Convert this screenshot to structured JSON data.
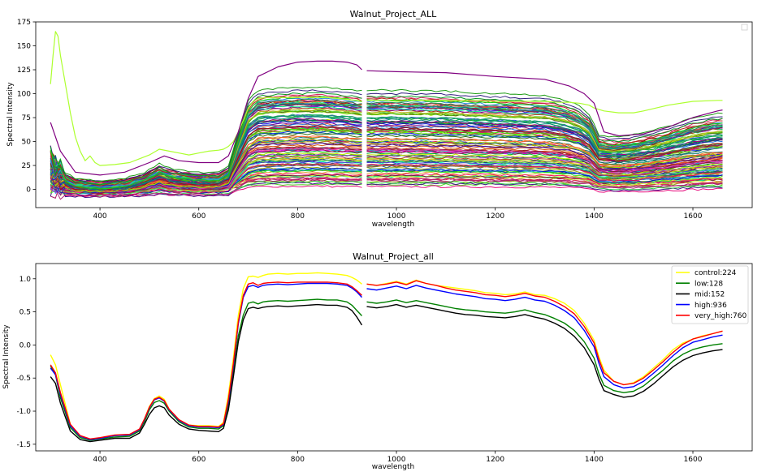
{
  "chart_data": [
    {
      "type": "line",
      "title": "Walnut_Project_ALL",
      "xlabel": "wavelength",
      "ylabel": "Spectral Intensity",
      "xlim": [
        270,
        1720
      ],
      "ylim": [
        -19,
        175
      ],
      "xticks": [
        400,
        600,
        800,
        1000,
        1200,
        1400,
        1600
      ],
      "yticks": [
        0,
        25,
        50,
        75,
        100,
        125,
        150,
        175
      ],
      "grid": false,
      "legend": "top-right (empty)",
      "series_count_estimate": 120,
      "highlighted_series": [
        {
          "color": "#adff2f",
          "x": [
            300,
            305,
            310,
            315,
            320,
            330,
            340,
            350,
            360,
            370,
            380,
            390,
            400,
            430,
            460,
            480,
            500,
            520,
            540,
            560,
            580,
            600,
            620,
            640,
            650,
            660,
            670,
            680,
            690,
            700,
            710,
            720,
            740,
            760,
            780,
            800,
            820,
            840,
            860,
            880,
            900,
            920,
            930,
            940,
            960,
            980,
            1000,
            1050,
            1100,
            1150,
            1200,
            1250,
            1300,
            1330,
            1350,
            1370,
            1390,
            1400,
            1420,
            1450,
            1480,
            1500,
            1550,
            1600,
            1650,
            1660
          ],
          "y": [
            110,
            140,
            165,
            160,
            140,
            110,
            80,
            55,
            40,
            30,
            35,
            28,
            25,
            26,
            28,
            32,
            36,
            42,
            40,
            38,
            36,
            38,
            40,
            41,
            42,
            45,
            50,
            60,
            72,
            85,
            92,
            95,
            96,
            96,
            96,
            96,
            96,
            96,
            96,
            95,
            94,
            93,
            92,
            93,
            93,
            93,
            92,
            93,
            93,
            93,
            92,
            92,
            92,
            91,
            91,
            90,
            88,
            85,
            82,
            80,
            80,
            82,
            88,
            92,
            93,
            93
          ]
        },
        {
          "color": "#800080",
          "x": [
            300,
            320,
            350,
            400,
            450,
            500,
            530,
            560,
            600,
            640,
            660,
            680,
            700,
            720,
            760,
            800,
            840,
            870,
            900,
            920,
            930,
            940,
            1000,
            1100,
            1200,
            1300,
            1350,
            1380,
            1400,
            1420,
            1450,
            1500,
            1550,
            1600,
            1650,
            1660
          ],
          "y": [
            70,
            40,
            18,
            15,
            18,
            28,
            35,
            30,
            28,
            28,
            35,
            60,
            95,
            118,
            128,
            133,
            134,
            134,
            133,
            130,
            125,
            124,
            123,
            122,
            118,
            115,
            108,
            100,
            90,
            60,
            56,
            58,
            65,
            75,
            82,
            83
          ]
        }
      ]
    },
    {
      "type": "line",
      "title": "Walnut_Project_all",
      "xlabel": "wavelength",
      "ylabel": "Spectral Intensity",
      "xlim": [
        270,
        1720
      ],
      "ylim": [
        -1.6,
        1.23
      ],
      "xticks": [
        400,
        600,
        800,
        1000,
        1200,
        1400,
        1600
      ],
      "yticks": [
        -1.5,
        -1.0,
        -0.5,
        0.0,
        0.5,
        1.0
      ],
      "grid": false,
      "legend": "top-right",
      "x": [
        300,
        310,
        320,
        340,
        360,
        380,
        400,
        430,
        460,
        480,
        490,
        500,
        510,
        520,
        530,
        540,
        560,
        580,
        600,
        620,
        640,
        650,
        660,
        670,
        680,
        690,
        700,
        710,
        720,
        730,
        740,
        760,
        780,
        800,
        820,
        840,
        860,
        880,
        900,
        910,
        920,
        930,
        940,
        960,
        980,
        1000,
        1020,
        1040,
        1060,
        1080,
        1100,
        1120,
        1140,
        1160,
        1180,
        1200,
        1220,
        1240,
        1260,
        1280,
        1300,
        1320,
        1340,
        1360,
        1380,
        1400,
        1410,
        1420,
        1440,
        1460,
        1480,
        1500,
        1520,
        1540,
        1560,
        1580,
        1600,
        1620,
        1640,
        1660
      ],
      "series": [
        {
          "name": "control:224",
          "color": "#ffff00",
          "values": [
            -0.15,
            -0.3,
            -0.6,
            -1.2,
            -1.38,
            -1.43,
            -1.41,
            -1.37,
            -1.36,
            -1.28,
            -1.12,
            -0.93,
            -0.81,
            -0.77,
            -0.82,
            -0.97,
            -1.13,
            -1.21,
            -1.22,
            -1.22,
            -1.23,
            -1.17,
            -0.75,
            -0.2,
            0.45,
            0.85,
            1.03,
            1.04,
            1.02,
            1.05,
            1.07,
            1.08,
            1.07,
            1.08,
            1.08,
            1.09,
            1.08,
            1.07,
            1.05,
            1.02,
            0.98,
            0.92,
            0.92,
            0.9,
            0.93,
            0.96,
            0.92,
            0.98,
            0.93,
            0.9,
            0.88,
            0.86,
            0.84,
            0.82,
            0.79,
            0.78,
            0.76,
            0.77,
            0.8,
            0.76,
            0.75,
            0.7,
            0.63,
            0.52,
            0.33,
            0.07,
            -0.18,
            -0.38,
            -0.55,
            -0.6,
            -0.57,
            -0.48,
            -0.35,
            -0.22,
            -0.07,
            0.03,
            0.09,
            0.14,
            0.17,
            0.21
          ]
        },
        {
          "name": "low:128",
          "color": "#008000",
          "values": [
            -0.32,
            -0.45,
            -0.8,
            -1.25,
            -1.4,
            -1.44,
            -1.42,
            -1.39,
            -1.38,
            -1.3,
            -1.16,
            -0.98,
            -0.87,
            -0.84,
            -0.88,
            -1.0,
            -1.16,
            -1.24,
            -1.26,
            -1.26,
            -1.27,
            -1.22,
            -0.92,
            -0.4,
            0.14,
            0.45,
            0.63,
            0.65,
            0.62,
            0.65,
            0.66,
            0.67,
            0.66,
            0.67,
            0.68,
            0.69,
            0.68,
            0.68,
            0.65,
            0.6,
            0.52,
            0.44,
            0.65,
            0.63,
            0.65,
            0.68,
            0.64,
            0.67,
            0.64,
            0.61,
            0.58,
            0.55,
            0.53,
            0.52,
            0.5,
            0.49,
            0.48,
            0.5,
            0.53,
            0.49,
            0.46,
            0.4,
            0.33,
            0.22,
            0.05,
            -0.2,
            -0.44,
            -0.61,
            -0.69,
            -0.72,
            -0.7,
            -0.62,
            -0.5,
            -0.38,
            -0.24,
            -0.14,
            -0.07,
            -0.03,
            0.0,
            0.02
          ]
        },
        {
          "name": "mid:152",
          "color": "#000000",
          "values": [
            -0.48,
            -0.58,
            -0.88,
            -1.3,
            -1.43,
            -1.46,
            -1.44,
            -1.41,
            -1.41,
            -1.33,
            -1.2,
            -1.05,
            -0.95,
            -0.92,
            -0.95,
            -1.06,
            -1.2,
            -1.27,
            -1.29,
            -1.3,
            -1.31,
            -1.26,
            -0.98,
            -0.48,
            0.05,
            0.38,
            0.55,
            0.57,
            0.55,
            0.57,
            0.58,
            0.59,
            0.58,
            0.59,
            0.6,
            0.61,
            0.6,
            0.6,
            0.57,
            0.52,
            0.42,
            0.3,
            0.58,
            0.56,
            0.58,
            0.61,
            0.57,
            0.6,
            0.57,
            0.54,
            0.51,
            0.48,
            0.46,
            0.45,
            0.43,
            0.42,
            0.41,
            0.43,
            0.46,
            0.42,
            0.39,
            0.33,
            0.25,
            0.13,
            -0.04,
            -0.3,
            -0.52,
            -0.69,
            -0.75,
            -0.79,
            -0.77,
            -0.7,
            -0.59,
            -0.46,
            -0.33,
            -0.23,
            -0.16,
            -0.12,
            -0.09,
            -0.07
          ]
        },
        {
          "name": "high:936",
          "color": "#0000ff",
          "values": [
            -0.35,
            -0.45,
            -0.75,
            -1.22,
            -1.38,
            -1.43,
            -1.41,
            -1.37,
            -1.36,
            -1.28,
            -1.13,
            -0.95,
            -0.83,
            -0.8,
            -0.85,
            -0.98,
            -1.14,
            -1.22,
            -1.24,
            -1.24,
            -1.25,
            -1.2,
            -0.85,
            -0.32,
            0.32,
            0.72,
            0.88,
            0.9,
            0.87,
            0.9,
            0.91,
            0.92,
            0.91,
            0.92,
            0.93,
            0.93,
            0.93,
            0.92,
            0.9,
            0.86,
            0.8,
            0.72,
            0.85,
            0.83,
            0.86,
            0.89,
            0.85,
            0.9,
            0.86,
            0.83,
            0.8,
            0.77,
            0.75,
            0.73,
            0.7,
            0.69,
            0.67,
            0.69,
            0.72,
            0.68,
            0.66,
            0.6,
            0.52,
            0.41,
            0.22,
            -0.03,
            -0.28,
            -0.48,
            -0.6,
            -0.65,
            -0.63,
            -0.55,
            -0.43,
            -0.3,
            -0.16,
            -0.04,
            0.04,
            0.08,
            0.12,
            0.15
          ]
        },
        {
          "name": "very_high:760",
          "color": "#ff0000",
          "values": [
            -0.3,
            -0.42,
            -0.72,
            -1.2,
            -1.37,
            -1.42,
            -1.4,
            -1.36,
            -1.35,
            -1.27,
            -1.12,
            -0.94,
            -0.82,
            -0.79,
            -0.84,
            -0.97,
            -1.13,
            -1.21,
            -1.23,
            -1.23,
            -1.24,
            -1.19,
            -0.82,
            -0.28,
            0.35,
            0.75,
            0.92,
            0.94,
            0.9,
            0.93,
            0.94,
            0.95,
            0.94,
            0.95,
            0.95,
            0.95,
            0.95,
            0.94,
            0.92,
            0.88,
            0.82,
            0.75,
            0.92,
            0.9,
            0.92,
            0.95,
            0.91,
            0.97,
            0.93,
            0.9,
            0.86,
            0.83,
            0.81,
            0.79,
            0.76,
            0.75,
            0.73,
            0.75,
            0.78,
            0.74,
            0.72,
            0.66,
            0.58,
            0.47,
            0.28,
            0.03,
            -0.22,
            -0.42,
            -0.55,
            -0.6,
            -0.58,
            -0.5,
            -0.38,
            -0.25,
            -0.11,
            0.01,
            0.09,
            0.13,
            0.17,
            0.21
          ]
        }
      ]
    }
  ]
}
